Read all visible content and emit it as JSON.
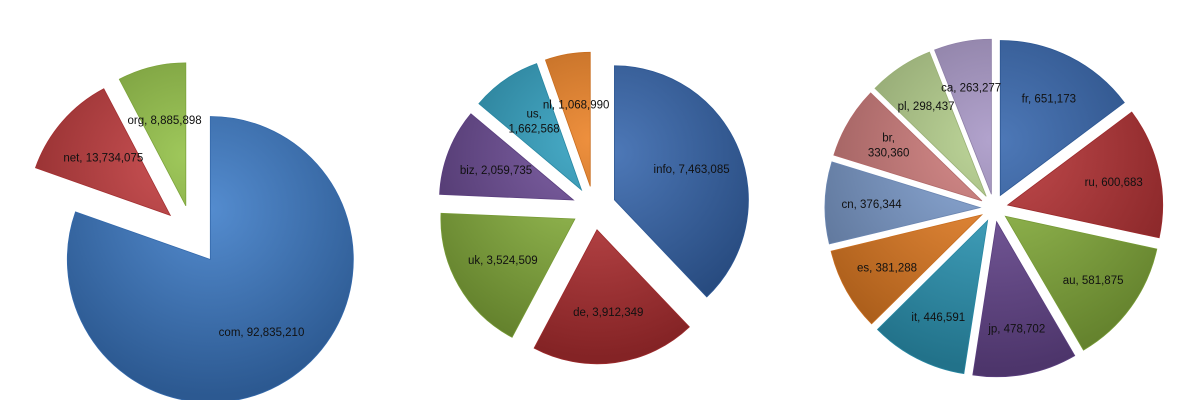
{
  "chart_data": [
    {
      "type": "pie",
      "slices": [
        {
          "label": "com",
          "value": 92835210,
          "color": "#3d7cc9",
          "text": "com, 92,835,210"
        },
        {
          "label": "net",
          "value": 13734075,
          "color": "#c0393b",
          "text": "net, 13,734,075"
        },
        {
          "label": "org",
          "value": 8885898,
          "color": "#92c045",
          "text": "org, 8,885,898"
        }
      ]
    },
    {
      "type": "pie",
      "slices": [
        {
          "label": "info",
          "value": 7463085,
          "color": "#3566ad",
          "text": "info, 7,463,085"
        },
        {
          "label": "de",
          "value": 3912349,
          "color": "#b73134",
          "text": "de, 3,912,349"
        },
        {
          "label": "uk",
          "value": 3524509,
          "color": "#8bb53e",
          "text": "uk, 3,524,509"
        },
        {
          "label": "biz",
          "value": 2059735,
          "color": "#6b4a95",
          "text": "biz, 2,059,735"
        },
        {
          "label": "us",
          "value": 1662568,
          "color": "#2f9fbf",
          "text": "us, 1,662,568"
        },
        {
          "label": "nl",
          "value": 1068990,
          "color": "#ec8124",
          "text": "nl, 1,068,990"
        }
      ]
    },
    {
      "type": "pie",
      "slices": [
        {
          "label": "fr",
          "value": 651173,
          "color": "#3566ad",
          "text": "fr, 651,173"
        },
        {
          "label": "ru",
          "value": 600683,
          "color": "#b73134",
          "text": "ru, 600,683"
        },
        {
          "label": "au",
          "value": 581875,
          "color": "#8bb53e",
          "text": "au, 581,875"
        },
        {
          "label": "jp",
          "value": 478702,
          "color": "#6b4a95",
          "text": "jp, 478,702"
        },
        {
          "label": "it",
          "value": 446591,
          "color": "#2f9fbf",
          "text": "it, 446,591"
        },
        {
          "label": "es",
          "value": 381288,
          "color": "#ec8124",
          "text": "es, 381,288"
        },
        {
          "label": "cn",
          "value": 376344,
          "color": "#7f9fd1",
          "text": "cn, 376,344"
        },
        {
          "label": "br",
          "value": 330360,
          "color": "#d07c7b",
          "text": "br, 330,360"
        },
        {
          "label": "pl",
          "value": 298437,
          "color": "#b4cf8b",
          "text": "pl, 298,437"
        },
        {
          "label": "ca",
          "value": 263277,
          "color": "#a897c6",
          "text": "ca, 263,277"
        }
      ]
    }
  ]
}
